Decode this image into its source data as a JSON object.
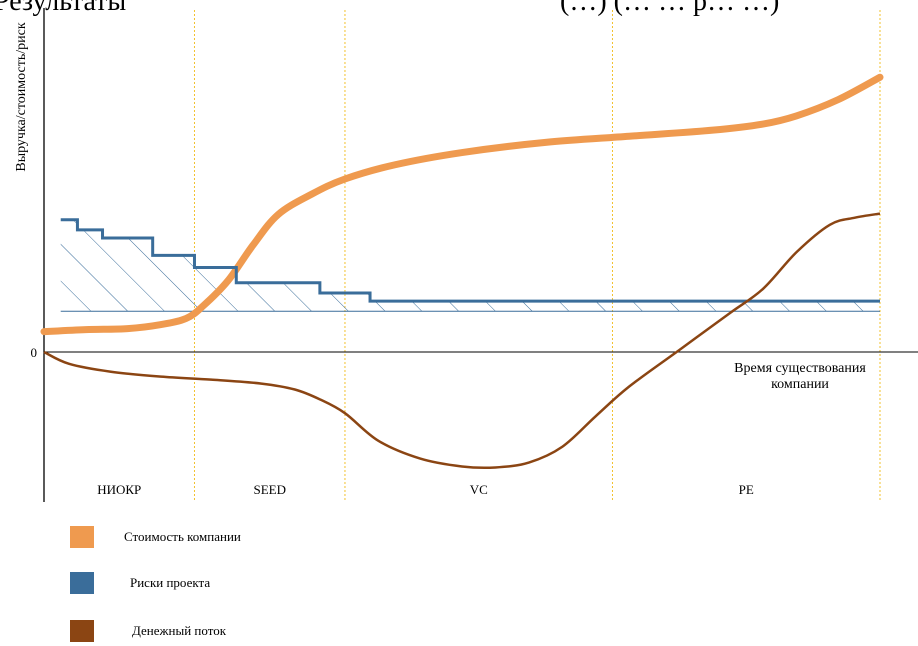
{
  "page": {
    "top_left_text": "Результаты",
    "top_right_text": "(…) (… … р… …)"
  },
  "chart_data": {
    "type": "line",
    "title": "",
    "ylabel": "Выручка/стоимость/риск",
    "xlabel": "Время существования компании",
    "xlabel_lines": [
      "Время существования",
      "компании"
    ],
    "origin_label": "0",
    "grid": false,
    "legend_position": "bottom-left",
    "xlim": [
      0,
      100
    ],
    "ylim": [
      -150,
      340
    ],
    "phases": [
      {
        "name": "НИОКР",
        "start": 0,
        "end": 18
      },
      {
        "name": "SEED",
        "start": 18,
        "end": 36
      },
      {
        "name": "VC",
        "start": 36,
        "end": 68
      },
      {
        "name": "PE",
        "start": 68,
        "end": 100
      }
    ],
    "series": [
      {
        "name": "Стоимость компании",
        "color": "#ef9a4f",
        "x": [
          0,
          5,
          10,
          14,
          17,
          19,
          22,
          25,
          28,
          32,
          36,
          42,
          50,
          60,
          70,
          80,
          86,
          90,
          95,
          100
        ],
        "y": [
          20,
          22,
          23,
          27,
          33,
          45,
          70,
          105,
          135,
          155,
          170,
          184,
          196,
          206,
          212,
          218,
          224,
          232,
          248,
          270
        ]
      },
      {
        "name": "Риски проекта",
        "color": "#3a6d9a",
        "step": true,
        "x": [
          2,
          4,
          4,
          7,
          7,
          13,
          13,
          18,
          18,
          23,
          23,
          33,
          33,
          39,
          39,
          100
        ],
        "y": [
          130,
          130,
          120,
          120,
          112,
          112,
          95,
          95,
          83,
          83,
          68,
          68,
          58,
          58,
          50,
          50
        ]
      },
      {
        "name": "Денежный поток",
        "color": "#8b4513",
        "x": [
          0,
          3,
          8,
          14,
          20,
          26,
          30,
          33,
          36,
          40,
          45,
          50,
          54,
          58,
          62,
          66,
          70,
          76,
          82,
          86,
          90,
          94,
          97,
          100
        ],
        "y": [
          0,
          -12,
          -20,
          -25,
          -28,
          -32,
          -38,
          -48,
          -62,
          -90,
          -108,
          -116,
          -117,
          -112,
          -96,
          -65,
          -35,
          2,
          38,
          62,
          98,
          125,
          132,
          136
        ]
      }
    ],
    "risk_hatch_baseline": 40
  }
}
